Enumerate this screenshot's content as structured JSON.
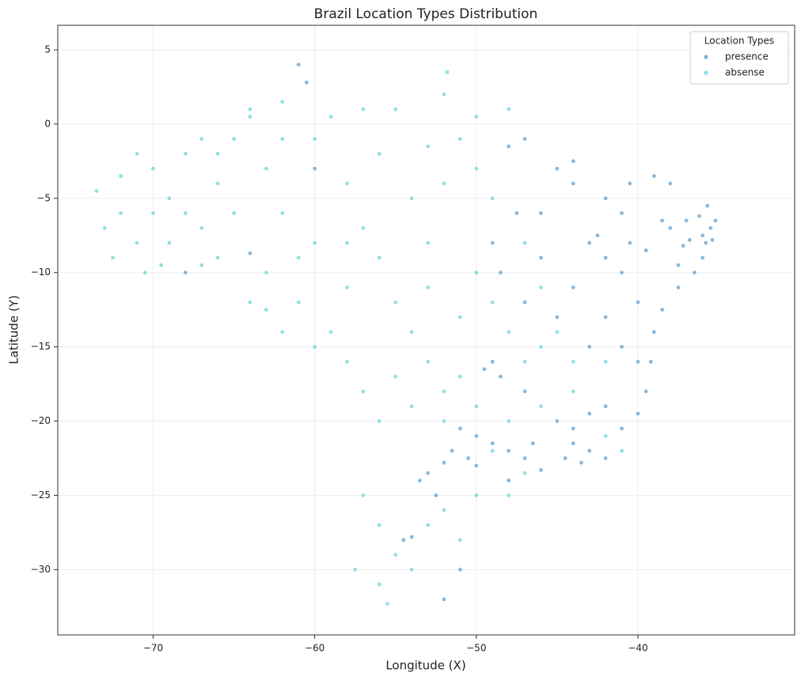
{
  "chart_data": {
    "type": "scatter",
    "title": "Brazil Location Types Distribution",
    "x_label": "Longitude (X)",
    "y_label": "Latitude (Y)",
    "legend_title": "Location Types",
    "legend_position": "upper right",
    "grid": true,
    "xlim": [
      -75.9,
      -30.3
    ],
    "ylim": [
      -34.4,
      6.65
    ],
    "xticks": [
      {
        "value": -70,
        "label": "−70"
      },
      {
        "value": -60,
        "label": "−60"
      },
      {
        "value": -50,
        "label": "−50"
      },
      {
        "value": -40,
        "label": "−40"
      }
    ],
    "yticks": [
      5,
      0,
      {
        "value": -5,
        "label": "−5"
      },
      {
        "value": -10,
        "label": "−10"
      },
      {
        "value": -15,
        "label": "−15"
      },
      {
        "value": -20,
        "label": "−20"
      },
      {
        "value": -25,
        "label": "−25"
      },
      {
        "value": -30,
        "label": "−30"
      }
    ],
    "series": [
      {
        "name": "presence",
        "color": "#4f92c4",
        "x": [
          -35.5,
          -35.2,
          -35.8,
          -36.2,
          -37,
          -38,
          -38.5,
          -36,
          -36.5,
          -37.5,
          -38.5,
          -39,
          -39.2,
          -39.5,
          -40,
          -41,
          -42,
          -43.5,
          -44.5,
          -46,
          -47,
          -48,
          -49,
          -50,
          -51,
          -50.5,
          -52,
          -53,
          -52.5,
          -53.5,
          -54.5,
          -54,
          -49.5,
          -49,
          -48.5,
          -47,
          -45,
          -44,
          -43,
          -42,
          -40.5,
          -39,
          -38,
          -41,
          -42,
          -43,
          -44,
          -45,
          -46,
          -47.5,
          -48,
          -47,
          -44,
          -42,
          -41,
          -40,
          -42,
          -43,
          -44,
          -45,
          -41,
          -40,
          -46,
          -47,
          -48.5,
          -49,
          -39.5,
          -40.5,
          -42.5,
          -37.5,
          -35.7,
          -36.8,
          -51,
          -52,
          -60,
          -60.5,
          -61,
          -68,
          -64,
          -51.5,
          -46.5,
          -44,
          -43,
          -48,
          -50,
          -36,
          -35.4,
          -37.2
        ],
        "y": [
          -7,
          -6.5,
          -8,
          -6.2,
          -6.5,
          -7,
          -6.5,
          -9,
          -10,
          -11,
          -12.5,
          -14,
          -16,
          -18,
          -19.5,
          -20.5,
          -22.5,
          -22.8,
          -22.5,
          -23.3,
          -22.5,
          -22,
          -21.5,
          -21,
          -20.5,
          -22.5,
          -22.8,
          -23.5,
          -25,
          -24,
          -28,
          -27.8,
          -16.5,
          -16,
          -17,
          -18,
          -20,
          -20.5,
          -19.5,
          -19,
          -4,
          -3.5,
          -4,
          -6,
          -5,
          -8,
          -4,
          -3,
          -6,
          -6,
          -1.5,
          -1,
          -2.5,
          -9,
          -10,
          -12,
          -13,
          -15,
          -11,
          -13,
          -15,
          -16,
          -9,
          -12,
          -10,
          -8,
          -8.5,
          -8,
          -7.5,
          -9.5,
          -5.5,
          -7.8,
          -30,
          -32,
          -3,
          2.8,
          4,
          -10,
          -8.7,
          -22,
          -21.5,
          -21.5,
          -22,
          -24,
          -23,
          -7.5,
          -7.8,
          -8.2
        ]
      },
      {
        "name": "absense",
        "color": "#52d2d6",
        "x": [
          -73.5,
          -72,
          -71,
          -70,
          -69,
          -68,
          -67,
          -66,
          -65,
          -64,
          -63,
          -62,
          -61,
          -60,
          -59,
          -58,
          -57,
          -56,
          -55,
          -54,
          -53,
          -52,
          -51,
          -50,
          -72.5,
          -70.5,
          -69,
          -67,
          -65,
          -63,
          -61,
          -59,
          -58,
          -56,
          -55,
          -54,
          -53,
          -51,
          -50,
          -49,
          -48,
          -47,
          -46,
          -60,
          -58,
          -57,
          -56,
          -55,
          -54,
          -53,
          -52,
          -51,
          -50,
          -48,
          -46,
          -44,
          -42,
          -57,
          -56,
          -55,
          -56,
          -55.5,
          -54,
          -53,
          -52,
          -51,
          -50,
          -48,
          -57.5,
          -62,
          -64,
          -66,
          -68,
          -70,
          -71,
          -73,
          -72,
          -52,
          -53,
          -50,
          -48,
          -49,
          -47,
          -46,
          -45,
          -44,
          -42,
          -41,
          -62,
          -63,
          -67,
          -69.5,
          -60,
          -58,
          -57,
          -62,
          -64,
          -66,
          -51.8,
          -52,
          -49,
          -47
        ],
        "y": [
          -4.5,
          -6,
          -8,
          -3,
          -5,
          -2,
          -7,
          -4,
          -1,
          0.5,
          -3,
          -6,
          -9,
          -1,
          0.5,
          -4,
          -7,
          -2,
          1,
          -5,
          -8,
          2,
          -1,
          -3,
          -9,
          -10,
          -8,
          -1,
          -6,
          -10,
          -12,
          -14,
          -11,
          -9,
          -12,
          -14,
          -11,
          -13,
          -10,
          -12,
          -14,
          -16,
          -15,
          -15,
          -16,
          -18,
          -20,
          -17,
          -19,
          -16,
          -18,
          -17,
          -19,
          -20,
          -19,
          -18,
          -21,
          -25,
          -27,
          -29,
          -31,
          -32.3,
          -30,
          -27,
          -26,
          -28,
          -25,
          -25,
          -30,
          -1,
          -12,
          -9,
          -6,
          -6,
          -2,
          -7,
          -3.5,
          -4,
          -1.5,
          0.5,
          1,
          -5,
          -8,
          -11,
          -14,
          -16,
          -16,
          -22,
          -14,
          -12.5,
          -9.5,
          -9.5,
          -8,
          -8,
          1,
          1.5,
          1,
          -2,
          3.5,
          -20,
          -22,
          -23.5
        ]
      }
    ]
  }
}
